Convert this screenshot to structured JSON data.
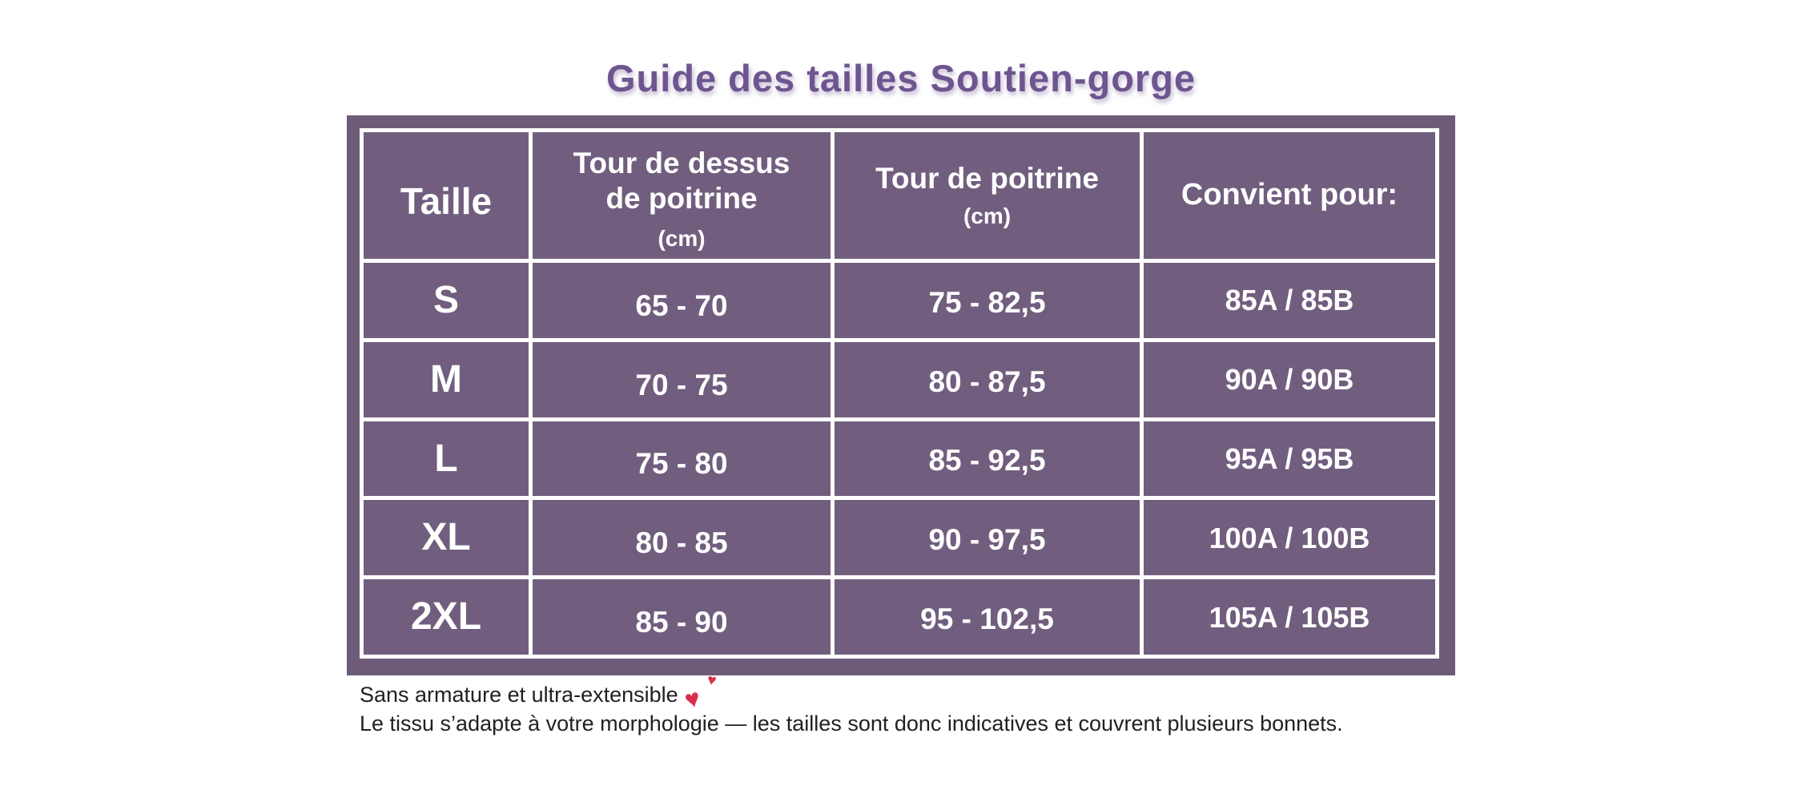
{
  "title": "Guide des tailles Soutien-gorge",
  "table": {
    "headers": [
      {
        "label": "Taille"
      },
      {
        "label": "Tour de dessus\nde poitrine",
        "sub": "(cm)"
      },
      {
        "label": "Tour de poitrine",
        "sub": "(cm)"
      },
      {
        "label": "Convient pour:"
      }
    ],
    "rows": [
      {
        "size": "S",
        "overbust": "65 - 70",
        "bust": "75 - 82,5",
        "fits": "85A / 85B"
      },
      {
        "size": "M",
        "overbust": "70 - 75",
        "bust": "80 - 87,5",
        "fits": "90A / 90B"
      },
      {
        "size": "L",
        "overbust": "75 - 80",
        "bust": "85 - 92,5",
        "fits": "95A / 95B"
      },
      {
        "size": "XL",
        "overbust": "80 - 85",
        "bust": "90 - 97,5",
        "fits": "100A / 100B"
      },
      {
        "size": "2XL",
        "overbust": "85 - 90",
        "bust": "95 - 102,5",
        "fits": "105A / 105B"
      }
    ]
  },
  "footer": {
    "line1": "Sans armature et ultra-extensible",
    "line2": "Le tissu s’adapte à votre morphologie — les tailles sont donc indicatives et couvrent plusieurs bonnets."
  },
  "icons": {
    "two_hearts_glyph": "♥"
  },
  "colors": {
    "accent_purple": "#6e5590",
    "frame_purple": "#6e5b7a",
    "cell_purple": "#715e7e",
    "border_white": "#ffffff",
    "footnote_text": "#212121",
    "heart_red": "#d8304a"
  }
}
